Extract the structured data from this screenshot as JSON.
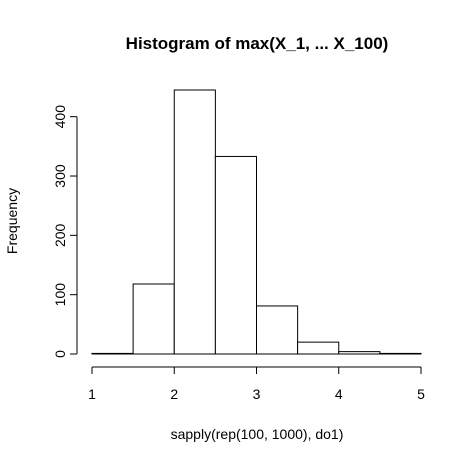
{
  "chart_data": {
    "type": "bar",
    "title": "Histogram of max(X_1, ... X_100)",
    "xlabel": "sapply(rep(100, 1000), do1)",
    "ylabel": "Frequency",
    "xlim": [
      1,
      5
    ],
    "ylim": [
      0,
      445
    ],
    "xticks": [
      1,
      2,
      3,
      4,
      5
    ],
    "yticks": [
      0,
      100,
      200,
      300,
      400
    ],
    "bin_edges": [
      1.0,
      1.5,
      2.0,
      2.5,
      3.0,
      3.5,
      4.0,
      4.5,
      5.0
    ],
    "values": [
      1,
      118,
      445,
      333,
      81,
      20,
      4,
      1
    ],
    "grid": false,
    "legend": "none",
    "colors": {
      "bar_fill": "#ffffff",
      "bar_stroke": "#000000"
    }
  }
}
